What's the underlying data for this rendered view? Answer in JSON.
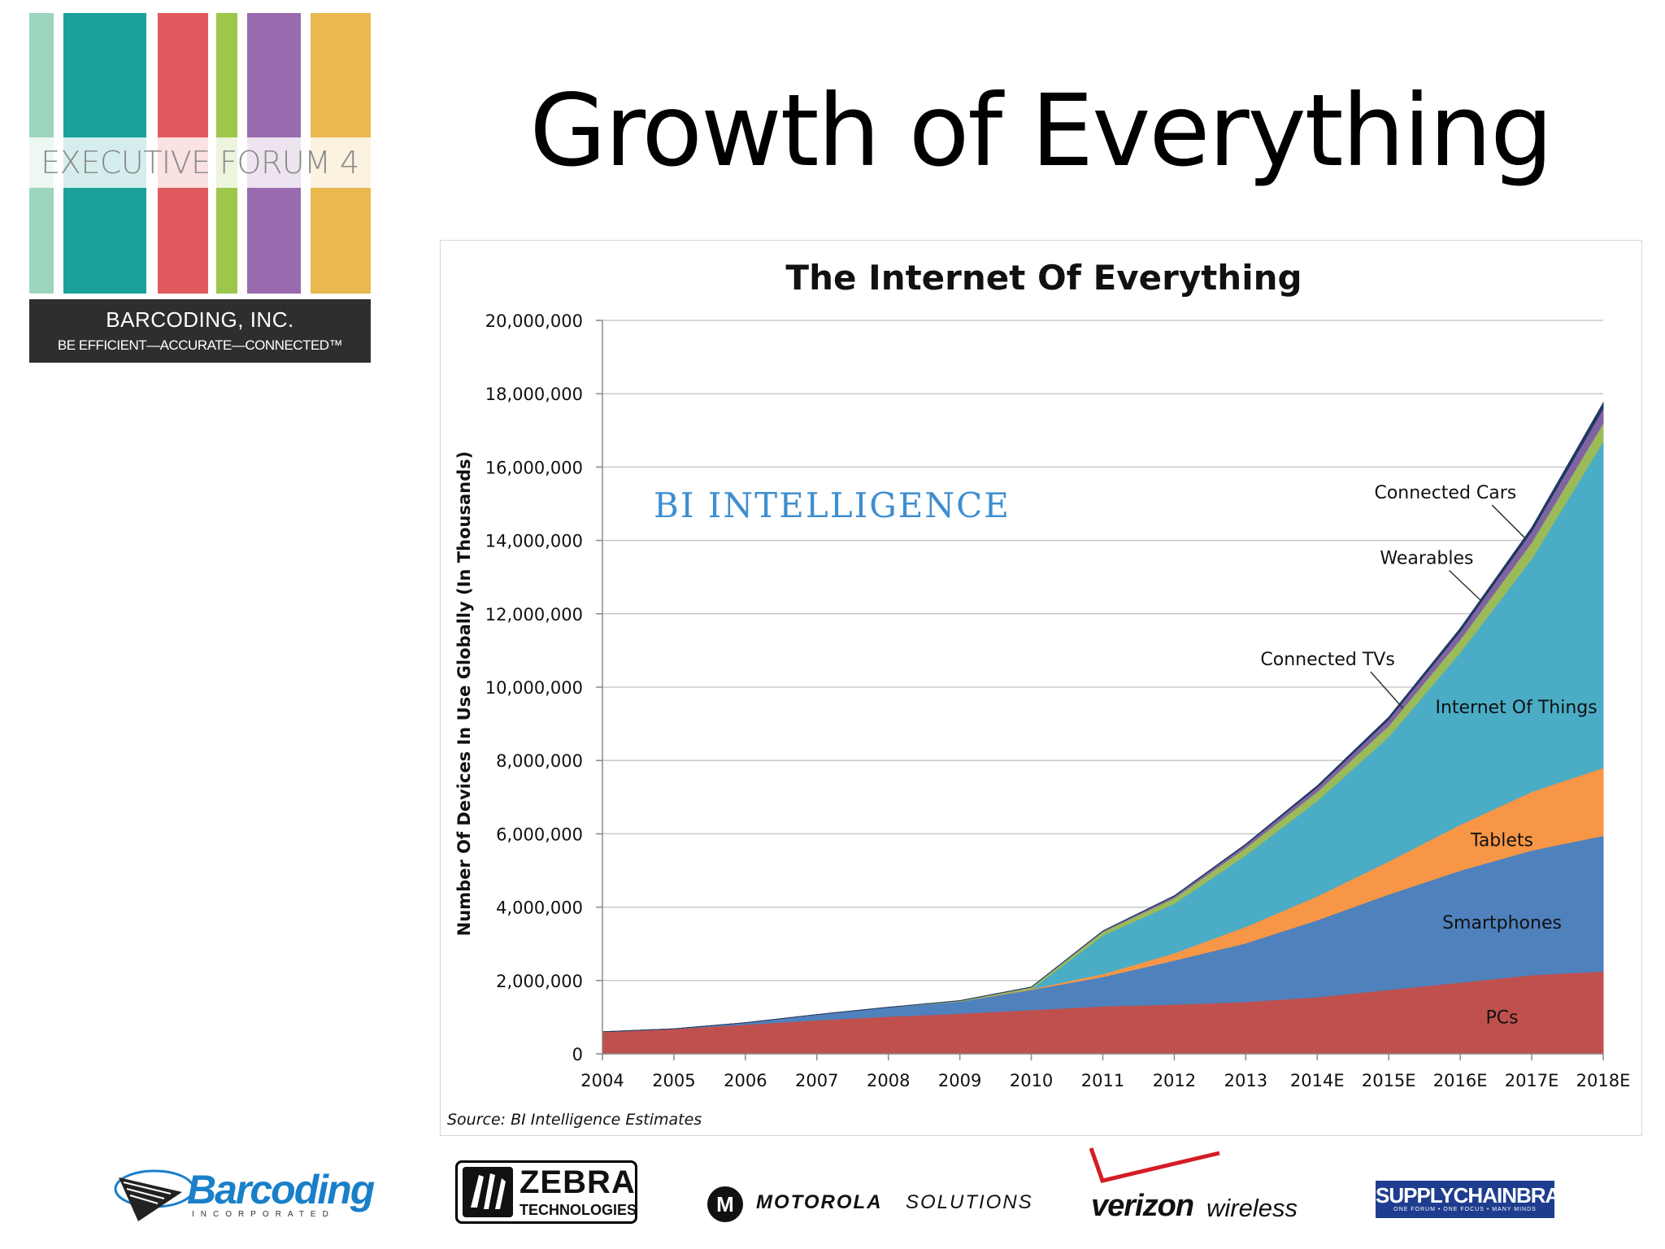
{
  "logo": {
    "forum_text": "EXECUTIVE FORUM 4",
    "company": "BARCODING, INC.",
    "tagline": "BE EFFICIENT—ACCURATE—CONNECTED™",
    "stripe_colors": [
      "#9dd5bd",
      "#1aa19b",
      "#e05a5e",
      "#9cc74a",
      "#9a6aae",
      "#e9b94f"
    ]
  },
  "slide_title": "Growth of Everything",
  "chart_data": {
    "type": "area",
    "stacked": true,
    "title": "The Internet Of Everything",
    "watermark": "BI INTELLIGENCE",
    "ylabel": "Number Of Devices In Use Globally (In Thousands)",
    "xlabel": "",
    "source": "Source: BI Intelligence Estimates",
    "ylim": [
      0,
      20000000
    ],
    "yticks": [
      0,
      2000000,
      4000000,
      6000000,
      8000000,
      10000000,
      12000000,
      14000000,
      16000000,
      18000000,
      20000000
    ],
    "ytick_labels": [
      "0",
      "2,000,000",
      "4,000,000",
      "6,000,000",
      "8,000,000",
      "10,000,000",
      "12,000,000",
      "14,000,000",
      "16,000,000",
      "18,000,000",
      "20,000,000"
    ],
    "grid": true,
    "categories": [
      "2004",
      "2005",
      "2006",
      "2007",
      "2008",
      "2009",
      "2010",
      "2011",
      "2012",
      "2013",
      "2014E",
      "2015E",
      "2016E",
      "2017E",
      "2018E"
    ],
    "series": [
      {
        "name": "PCs",
        "color": "#c0504d",
        "values": [
          600000,
          680000,
          800000,
          920000,
          1020000,
          1100000,
          1200000,
          1300000,
          1350000,
          1420000,
          1550000,
          1750000,
          1950000,
          2150000,
          2250000
        ]
      },
      {
        "name": "Smartphones",
        "color": "#4f81bd",
        "values": [
          0,
          0,
          50000,
          150000,
          250000,
          330000,
          550000,
          800000,
          1200000,
          1600000,
          2100000,
          2600000,
          3050000,
          3400000,
          3700000
        ]
      },
      {
        "name": "Tablets",
        "color": "#f79646",
        "values": [
          0,
          0,
          0,
          0,
          0,
          0,
          20000,
          80000,
          200000,
          450000,
          650000,
          900000,
          1250000,
          1600000,
          1850000
        ]
      },
      {
        "name": "Internet Of Things",
        "color": "#4bacc6",
        "values": [
          0,
          0,
          0,
          0,
          0,
          0,
          0,
          1050000,
          1350000,
          1950000,
          2600000,
          3400000,
          4700000,
          6350000,
          8900000
        ]
      },
      {
        "name": "Connected TVs",
        "color": "#9bbb59",
        "values": [
          0,
          0,
          0,
          0,
          0,
          20000,
          50000,
          100000,
          150000,
          200000,
          250000,
          300000,
          350000,
          450000,
          500000
        ]
      },
      {
        "name": "Wearables",
        "color": "#8064a2",
        "values": [
          0,
          0,
          0,
          0,
          0,
          0,
          0,
          20000,
          50000,
          80000,
          120000,
          170000,
          220000,
          300000,
          400000
        ]
      },
      {
        "name": "Connected Cars",
        "color": "#1f3864",
        "values": [
          0,
          0,
          0,
          0,
          0,
          0,
          0,
          0,
          10000,
          20000,
          40000,
          60000,
          80000,
          100000,
          150000
        ]
      }
    ],
    "annotations": [
      {
        "text": "PCs",
        "series": "PCs"
      },
      {
        "text": "Smartphones",
        "series": "Smartphones"
      },
      {
        "text": "Tablets",
        "series": "Tablets"
      },
      {
        "text": "Internet Of Things",
        "series": "Internet Of Things"
      },
      {
        "text": "Connected TVs",
        "series": "Connected TVs"
      },
      {
        "text": "Wearables",
        "series": "Wearables"
      },
      {
        "text": "Connected Cars",
        "series": "Connected Cars"
      }
    ]
  },
  "sponsors": {
    "barcoding": {
      "name": "Barcoding",
      "sub": "INCORPORATED"
    },
    "zebra": {
      "name": "ZEBRA",
      "sub": "TECHNOLOGIES"
    },
    "motorola": {
      "name": "MOTOROLA",
      "sub": "SOLUTIONS",
      "mark": "M"
    },
    "verizon": {
      "name": "verizon",
      "sub": "wireless"
    },
    "supplychainbrain": {
      "name": "SUPPLYCHAINBRAIN",
      "sub": "ONE FORUM • ONE FOCUS • MANY MINDS"
    }
  }
}
